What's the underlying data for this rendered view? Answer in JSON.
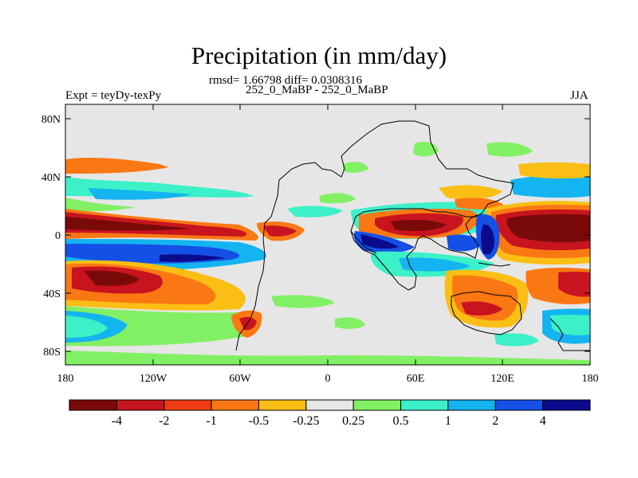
{
  "title": "Precipitation (in mm/day)",
  "stats": "rmsd= 1.66798 diff= 0.0308316",
  "experiment_name": "252_0_MaBP - 252_0_MaBP",
  "left_label": "Expt = teyDy-texPy",
  "right_label": "JJA",
  "map": {
    "x_ticks": [
      "180",
      "120W",
      "60W",
      "0",
      "60E",
      "120E",
      "180"
    ],
    "y_ticks": [
      "80N",
      "40N",
      "0",
      "40S",
      "80S"
    ],
    "background_color": "#e6e6e6"
  },
  "colorbar": {
    "labels": [
      "-4",
      "-2",
      "-1",
      "-0.5",
      "-0.25",
      "0.25",
      "0.5",
      "1",
      "2",
      "4"
    ],
    "colors": [
      "#7a0a0a",
      "#c8141e",
      "#f03c14",
      "#fa7814",
      "#fabe14",
      "#e6e6e6",
      "#82f064",
      "#3cf0c8",
      "#14b4f0",
      "#1450e6",
      "#0a0a8c"
    ]
  }
}
